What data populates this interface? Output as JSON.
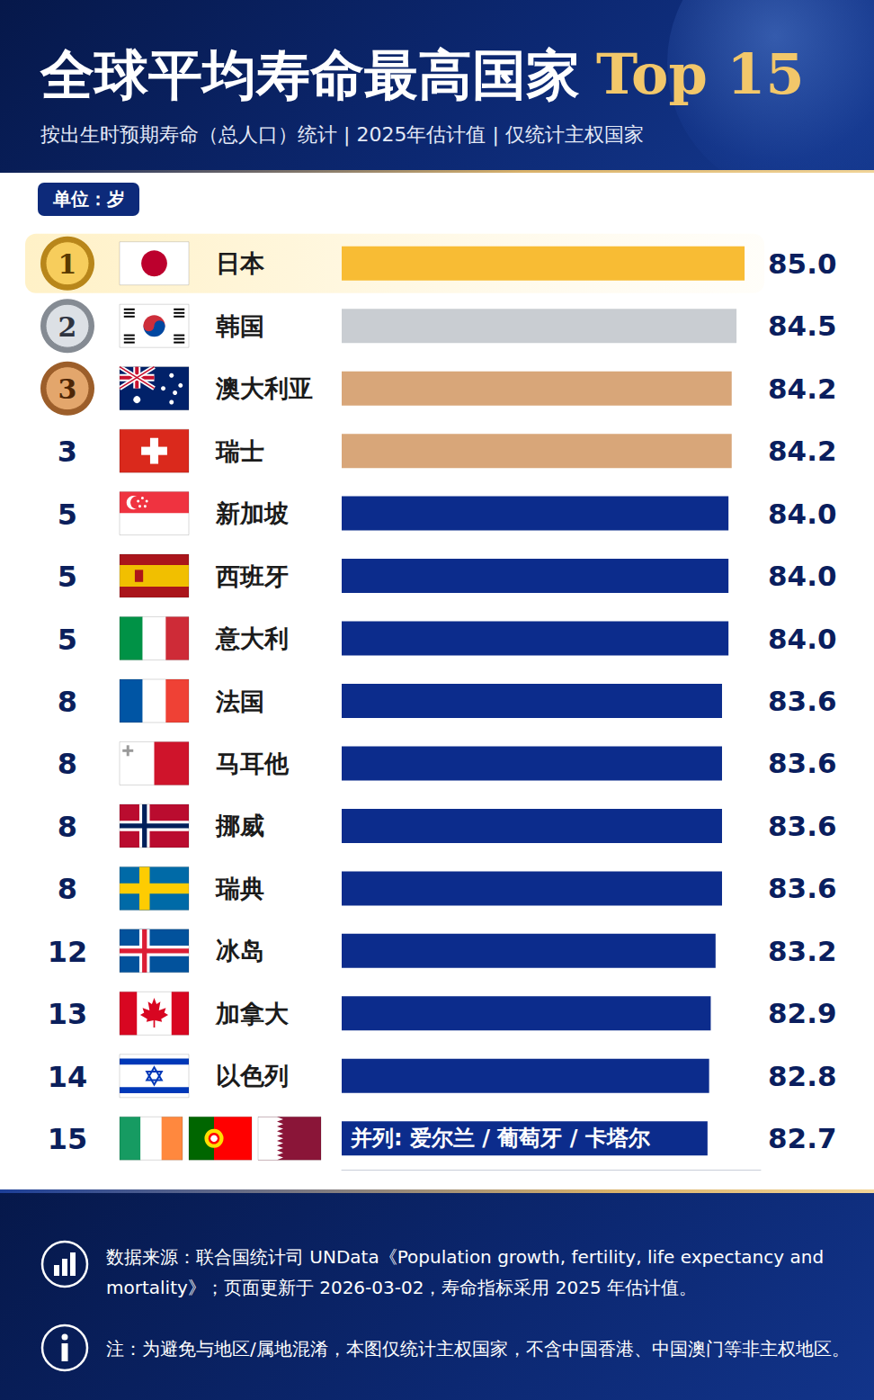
{
  "chart_data": {
    "type": "bar",
    "orientation": "horizontal",
    "title": "全球平均寿命最高国家 Top 15",
    "subtitle": "按出生时预期寿命（总人口）统计 | 2025年估计值 | 仅统计主权国家",
    "unit_label": "单位：岁",
    "ranks": [
      1,
      2,
      3,
      3,
      5,
      5,
      5,
      8,
      8,
      8,
      8,
      12,
      13,
      14,
      15
    ],
    "categories": [
      "日本",
      "韩国",
      "澳大利亚",
      "瑞士",
      "新加坡",
      "西班牙",
      "意大利",
      "法国",
      "马耳他",
      "挪威",
      "瑞典",
      "冰岛",
      "加拿大",
      "以色列",
      "并列: 爱尔兰 / 葡萄牙 / 卡塔尔"
    ],
    "values": [
      85.0,
      84.5,
      84.2,
      84.2,
      84.0,
      84.0,
      84.0,
      83.6,
      83.6,
      83.6,
      83.6,
      83.2,
      82.9,
      82.8,
      82.7
    ],
    "value_labels": [
      "85.0",
      "84.5",
      "84.2",
      "84.2",
      "84.0",
      "84.0",
      "84.0",
      "83.6",
      "83.6",
      "83.6",
      "83.6",
      "83.2",
      "82.9",
      "82.8",
      "82.7"
    ],
    "colors": [
      "#F8BC34",
      "#C9CDD2",
      "#D8A679",
      "#D8A679",
      "#0C2C8C",
      "#0C2C8C",
      "#0C2C8C",
      "#0C2C8C",
      "#0C2C8C",
      "#0C2C8C",
      "#0C2C8C",
      "#0C2C8C",
      "#0C2C8C",
      "#0C2C8C",
      "#0C2C8C"
    ],
    "xlim": [
      60,
      86
    ],
    "grid": false,
    "tick_labels": "y",
    "data_labels": true,
    "source": "数据来源：联合国统计司 UNData《Population growth, fertility, life expectancy and mortality》；页面更新于 2026-03-02，寿命指标采用 2025 年估计值。",
    "note": "注：为避免与地区/属地混淆，本图仅统计主权国家，不含中国香港、中国澳门等非主权地区。"
  }
}
